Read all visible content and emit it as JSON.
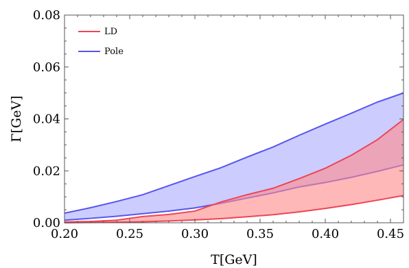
{
  "chart_data": {
    "type": "area",
    "title": "",
    "xlabel": "T[GeV]",
    "ylabel": "Γ[GeV]",
    "xlim": [
      0.2,
      0.46
    ],
    "ylim": [
      0.0,
      0.08
    ],
    "xticks": [
      "0.20",
      "0.25",
      "0.30",
      "0.35",
      "0.40",
      "0.45"
    ],
    "xtick_values": [
      0.2,
      0.25,
      0.3,
      0.35,
      0.4,
      0.45
    ],
    "yticks": [
      "0.00",
      "0.02",
      "0.04",
      "0.06",
      "0.08"
    ],
    "ytick_values": [
      0.0,
      0.02,
      0.04,
      0.06,
      0.08
    ],
    "grid": false,
    "legend_position": "top-left",
    "series": [
      {
        "name": "Pole",
        "color": "#5555ee",
        "fill": "#aaaaff",
        "x": [
          0.2,
          0.22,
          0.24,
          0.26,
          0.28,
          0.3,
          0.32,
          0.34,
          0.36,
          0.38,
          0.4,
          0.42,
          0.44,
          0.46
        ],
        "upper": [
          0.0037,
          0.0058,
          0.0082,
          0.0108,
          0.0143,
          0.0178,
          0.0212,
          0.0253,
          0.0292,
          0.0337,
          0.038,
          0.0422,
          0.0465,
          0.05
        ],
        "lower": [
          0.001,
          0.0017,
          0.0025,
          0.0035,
          0.0045,
          0.0057,
          0.0075,
          0.0095,
          0.0115,
          0.0138,
          0.0155,
          0.0175,
          0.0198,
          0.0223
        ]
      },
      {
        "name": "LD",
        "color": "#ee4455",
        "fill": "#ff8888",
        "x": [
          0.2,
          0.22,
          0.24,
          0.26,
          0.28,
          0.3,
          0.32,
          0.34,
          0.36,
          0.38,
          0.4,
          0.42,
          0.44,
          0.46
        ],
        "upper": [
          0.0003,
          0.0005,
          0.001,
          0.0024,
          0.0032,
          0.0045,
          0.008,
          0.0108,
          0.0133,
          0.017,
          0.021,
          0.026,
          0.032,
          0.0398
        ],
        "lower": [
          0.0,
          0.0001,
          0.0002,
          0.0004,
          0.0007,
          0.0011,
          0.0016,
          0.0023,
          0.0031,
          0.0042,
          0.0055,
          0.007,
          0.0087,
          0.0105
        ]
      }
    ],
    "legend_order": [
      "LD",
      "Pole"
    ]
  }
}
